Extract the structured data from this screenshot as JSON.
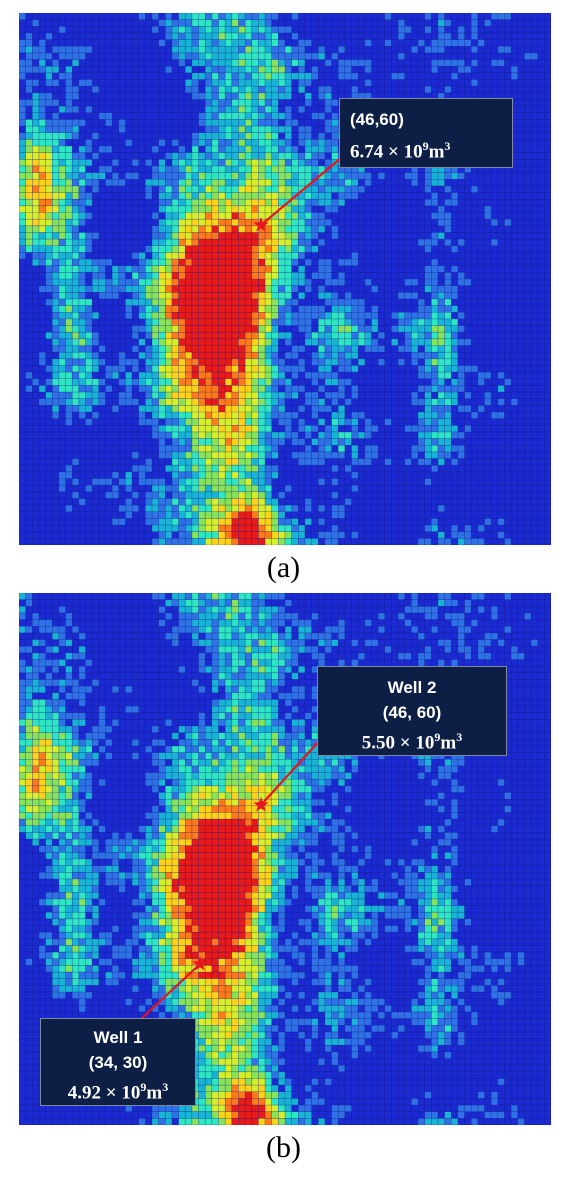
{
  "figure": {
    "panels": [
      {
        "id": "a",
        "caption": "(a)",
        "wells": [
          {
            "label": "",
            "coords": "(46,60)",
            "value_mantissa": "6.74",
            "value_exp": "9",
            "value_unit": "m",
            "unit_exp": "3"
          }
        ]
      },
      {
        "id": "b",
        "caption": "(b)",
        "wells": [
          {
            "label": "Well 2",
            "coords": "(46, 60)",
            "value_mantissa": "5.50",
            "value_exp": "9",
            "value_unit": "m",
            "unit_exp": "3"
          },
          {
            "label": "Well 1",
            "coords": "(34, 30)",
            "value_mantissa": "4.92",
            "value_exp": "9",
            "value_unit": "m",
            "unit_exp": "3"
          }
        ]
      }
    ],
    "grid_cells": 80,
    "colormap": [
      "#1c2ad2",
      "#2f72e6",
      "#19b3d6",
      "#2ee6c2",
      "#86e35a",
      "#d7ef2a",
      "#ffd21a",
      "#ff7a1a",
      "#e81a1a"
    ],
    "marker_color": "#e8141e",
    "callout_bg": "#0d1f45"
  }
}
